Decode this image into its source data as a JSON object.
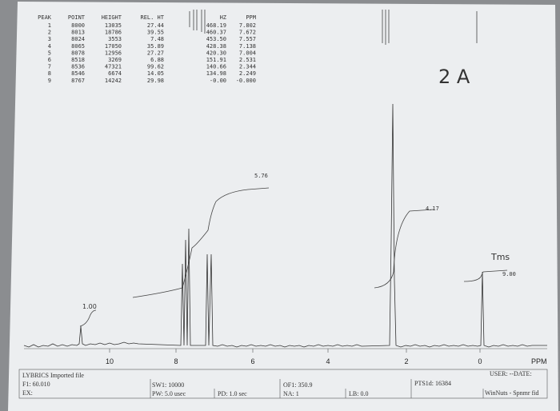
{
  "table": {
    "headers": [
      "PEAK",
      "POINT",
      "HEIGHT",
      "REL. HT",
      "HZ",
      "PPM"
    ],
    "rows": [
      [
        "1",
        "8000",
        "13035",
        "27.44",
        "468.19",
        "7.802"
      ],
      [
        "2",
        "8013",
        "18786",
        "39.55",
        "460.37",
        "7.672"
      ],
      [
        "3",
        "8024",
        "3553",
        "7.48",
        "453.50",
        "7.557"
      ],
      [
        "4",
        "8065",
        "17050",
        "35.89",
        "428.38",
        "7.138"
      ],
      [
        "5",
        "8078",
        "12956",
        "27.27",
        "420.30",
        "7.004"
      ],
      [
        "6",
        "8518",
        "3269",
        "6.88",
        "151.91",
        "2.531"
      ],
      [
        "7",
        "8536",
        "47321",
        "99.62",
        "140.66",
        "2.344"
      ],
      [
        "8",
        "8546",
        "6674",
        "14.05",
        "134.98",
        "2.249"
      ],
      [
        "9",
        "8767",
        "14242",
        "29.98",
        "-0.00",
        "-0.000"
      ]
    ]
  },
  "axis": {
    "ticks": [
      "10",
      "8",
      "6",
      "4",
      "2",
      "0"
    ],
    "unit": "PPM"
  },
  "annotations": {
    "sample": "2 A",
    "reference": "Tms",
    "integrals": [
      "1.00",
      "5.76",
      "4.17",
      "9.00"
    ]
  },
  "footer": [
    "LYBRICS Imported file",
    "F1: 60.010",
    "EX:",
    "SW1: 10000",
    "PW: 5.0 usec",
    "PD: 1.0 sec",
    "OF1: 350.9",
    "NA: 1",
    "LB: 0.0",
    "PTS1d: 16384",
    "USER: --DATE:",
    "WinNuts - Spnmr fid"
  ]
}
